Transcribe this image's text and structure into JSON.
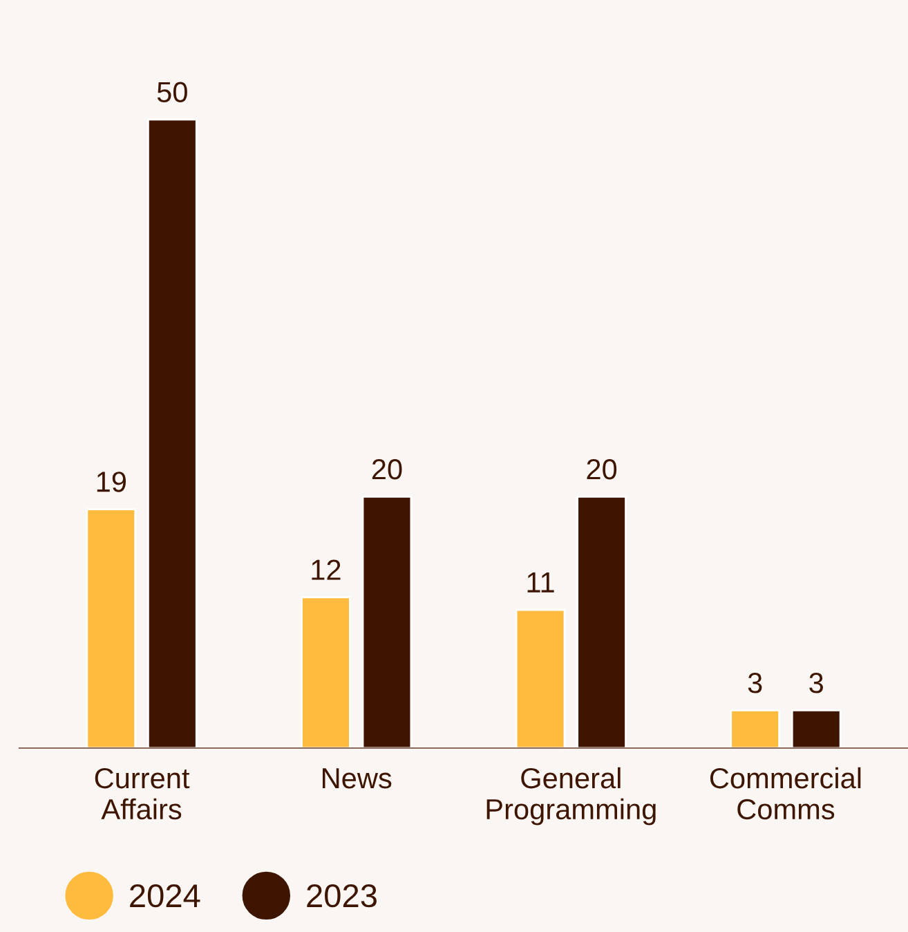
{
  "chart_data": {
    "type": "bar",
    "categories": [
      "Current\nAffairs",
      "News",
      "General\nProgramming",
      "Commercial\nComms"
    ],
    "series": [
      {
        "name": "2024",
        "color": "#ffbb3d",
        "values": [
          19,
          12,
          11,
          3
        ]
      },
      {
        "name": "2023",
        "color": "#3d1500",
        "values": [
          50,
          20,
          20,
          3
        ]
      }
    ],
    "data_labels": true,
    "legend": "bottom left",
    "grid": false
  }
}
